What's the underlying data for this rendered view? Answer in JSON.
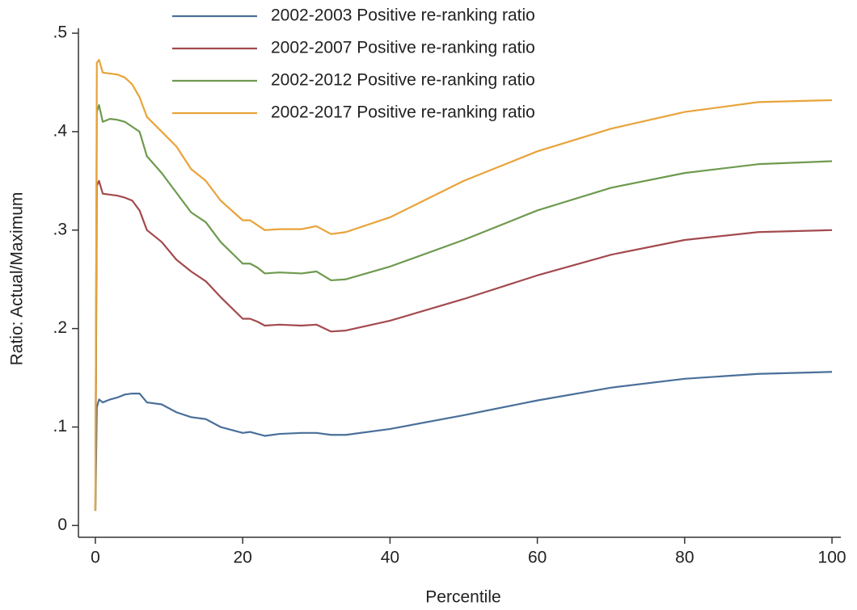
{
  "chart_data": {
    "type": "line",
    "x_label": "Percentile",
    "y_label": "Ratio: Actual/Maximum",
    "x": [
      0,
      0.2,
      0.5,
      1,
      2,
      3,
      4,
      5,
      6,
      7,
      9,
      11,
      13,
      15,
      17,
      20,
      21,
      22,
      23,
      25,
      28,
      30,
      32,
      34,
      40,
      50,
      60,
      70,
      80,
      90,
      100
    ],
    "series": [
      {
        "name": "2002-2003 Positive re-ranking ratio",
        "color": "#4a6f9a",
        "values": [
          0.015,
          0.12,
          0.128,
          0.125,
          0.128,
          0.13,
          0.133,
          0.134,
          0.134,
          0.125,
          0.123,
          0.115,
          0.11,
          0.108,
          0.1,
          0.094,
          0.095,
          0.093,
          0.091,
          0.093,
          0.094,
          0.094,
          0.092,
          0.092,
          0.098,
          0.112,
          0.127,
          0.14,
          0.149,
          0.154,
          0.156
        ]
      },
      {
        "name": "2002-2007 Positive re-ranking ratio",
        "color": "#a34a4e",
        "values": [
          0.015,
          0.345,
          0.35,
          0.337,
          0.336,
          0.335,
          0.333,
          0.33,
          0.32,
          0.3,
          0.288,
          0.27,
          0.258,
          0.248,
          0.232,
          0.21,
          0.21,
          0.207,
          0.203,
          0.204,
          0.203,
          0.204,
          0.197,
          0.198,
          0.208,
          0.23,
          0.254,
          0.275,
          0.29,
          0.298,
          0.3
        ]
      },
      {
        "name": "2002-2012 Positive re-ranking ratio",
        "color": "#6e9a4e",
        "values": [
          0.015,
          0.42,
          0.427,
          0.41,
          0.413,
          0.412,
          0.41,
          0.405,
          0.4,
          0.375,
          0.358,
          0.338,
          0.318,
          0.308,
          0.288,
          0.266,
          0.266,
          0.262,
          0.256,
          0.257,
          0.256,
          0.258,
          0.249,
          0.25,
          0.263,
          0.29,
          0.32,
          0.343,
          0.358,
          0.367,
          0.37
        ]
      },
      {
        "name": "2002-2017 Positive re-ranking ratio",
        "color": "#e8a33a",
        "values": [
          0.015,
          0.47,
          0.473,
          0.46,
          0.459,
          0.458,
          0.455,
          0.448,
          0.435,
          0.415,
          0.4,
          0.385,
          0.362,
          0.35,
          0.33,
          0.31,
          0.31,
          0.305,
          0.3,
          0.301,
          0.301,
          0.304,
          0.296,
          0.298,
          0.313,
          0.35,
          0.38,
          0.403,
          0.42,
          0.43,
          0.432
        ]
      }
    ],
    "xlim": [
      -2.3,
      101.2
    ],
    "xticks": [
      0,
      20,
      40,
      60,
      80,
      100
    ],
    "ylim": [
      -0.012,
      0.505
    ],
    "yticks": [
      0,
      {
        "value": 0.1,
        "label": ".1"
      },
      {
        "value": 0.2,
        "label": ".2"
      },
      {
        "value": 0.3,
        "label": ".3"
      },
      {
        "value": 0.4,
        "label": ".4"
      },
      {
        "value": 0.5,
        "label": ".5"
      }
    ],
    "legend": "top"
  }
}
